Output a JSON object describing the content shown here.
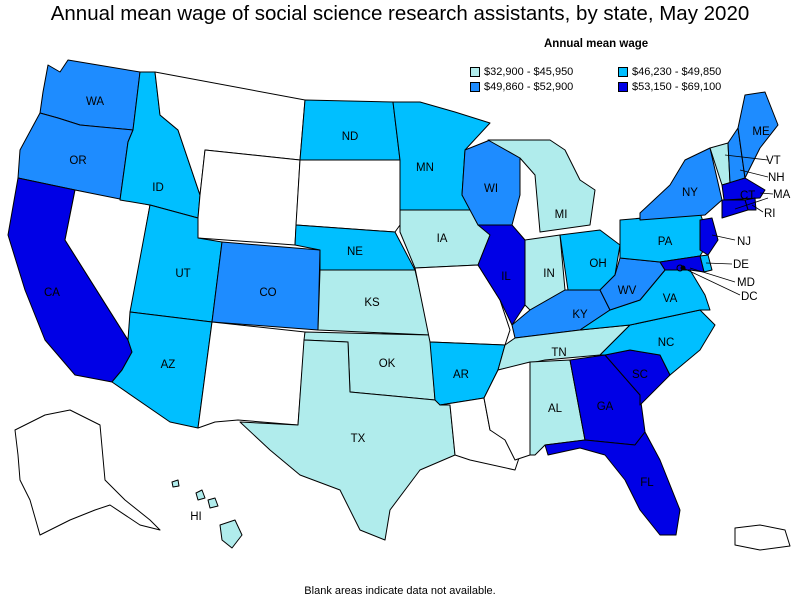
{
  "title": "Annual mean wage of social science research assistants, by state, May 2020",
  "legend": {
    "title": "Annual mean wage",
    "bins": [
      {
        "label": "$32,900 - $45,950",
        "color": "#b0ecec"
      },
      {
        "label": "$46,230 - $49,850",
        "color": "#00bfff"
      },
      {
        "label": "$49,860 - $52,900",
        "color": "#1e8cff"
      },
      {
        "label": "$53,150 - $69,100",
        "color": "#0000e6"
      }
    ]
  },
  "footnote": "Blank areas indicate data not available.",
  "nodata_color": "#ffffff",
  "states": {
    "WA": {
      "label": "WA",
      "bin": 2
    },
    "OR": {
      "label": "OR",
      "bin": 2
    },
    "CA": {
      "label": "CA",
      "bin": 3
    },
    "NV": {
      "label": "",
      "bin": null
    },
    "ID": {
      "label": "ID",
      "bin": 1
    },
    "MT": {
      "label": "",
      "bin": null
    },
    "WY": {
      "label": "",
      "bin": null
    },
    "UT": {
      "label": "UT",
      "bin": 1
    },
    "AZ": {
      "label": "AZ",
      "bin": 1
    },
    "CO": {
      "label": "CO",
      "bin": 2
    },
    "NM": {
      "label": "",
      "bin": null
    },
    "ND": {
      "label": "ND",
      "bin": 1
    },
    "SD": {
      "label": "",
      "bin": null
    },
    "NE": {
      "label": "NE",
      "bin": 1
    },
    "KS": {
      "label": "KS",
      "bin": 0
    },
    "OK": {
      "label": "OK",
      "bin": 0
    },
    "TX": {
      "label": "TX",
      "bin": 0
    },
    "MN": {
      "label": "MN",
      "bin": 1
    },
    "IA": {
      "label": "IA",
      "bin": 0
    },
    "MO": {
      "label": "",
      "bin": null
    },
    "AR": {
      "label": "AR",
      "bin": 1
    },
    "LA": {
      "label": "",
      "bin": null
    },
    "WI": {
      "label": "WI",
      "bin": 2
    },
    "IL": {
      "label": "IL",
      "bin": 3
    },
    "MI": {
      "label": "MI",
      "bin": 0
    },
    "IN": {
      "label": "IN",
      "bin": 0
    },
    "OH": {
      "label": "OH",
      "bin": 1
    },
    "KY": {
      "label": "KY",
      "bin": 2
    },
    "TN": {
      "label": "TN",
      "bin": 0
    },
    "MS": {
      "label": "",
      "bin": null
    },
    "AL": {
      "label": "AL",
      "bin": 0
    },
    "GA": {
      "label": "GA",
      "bin": 3
    },
    "FL": {
      "label": "FL",
      "bin": 3
    },
    "SC": {
      "label": "SC",
      "bin": 3
    },
    "NC": {
      "label": "NC",
      "bin": 1
    },
    "VA": {
      "label": "VA",
      "bin": 1
    },
    "WV": {
      "label": "WV",
      "bin": 2
    },
    "PA": {
      "label": "PA",
      "bin": 1
    },
    "NY": {
      "label": "NY",
      "bin": 2
    },
    "VT": {
      "label": "VT",
      "bin": 0
    },
    "NH": {
      "label": "NH",
      "bin": 2
    },
    "ME": {
      "label": "ME",
      "bin": 2
    },
    "MA": {
      "label": "MA",
      "bin": 3
    },
    "RI": {
      "label": "RI",
      "bin": 3
    },
    "CT": {
      "label": "CT",
      "bin": 3
    },
    "NJ": {
      "label": "NJ",
      "bin": 3
    },
    "DE": {
      "label": "DE",
      "bin": 1
    },
    "MD": {
      "label": "MD",
      "bin": 3
    },
    "DC": {
      "label": "DC",
      "bin": 3
    },
    "AK": {
      "label": "",
      "bin": null
    },
    "HI": {
      "label": "HI",
      "bin": 0
    },
    "PR": {
      "label": "",
      "bin": null
    }
  }
}
